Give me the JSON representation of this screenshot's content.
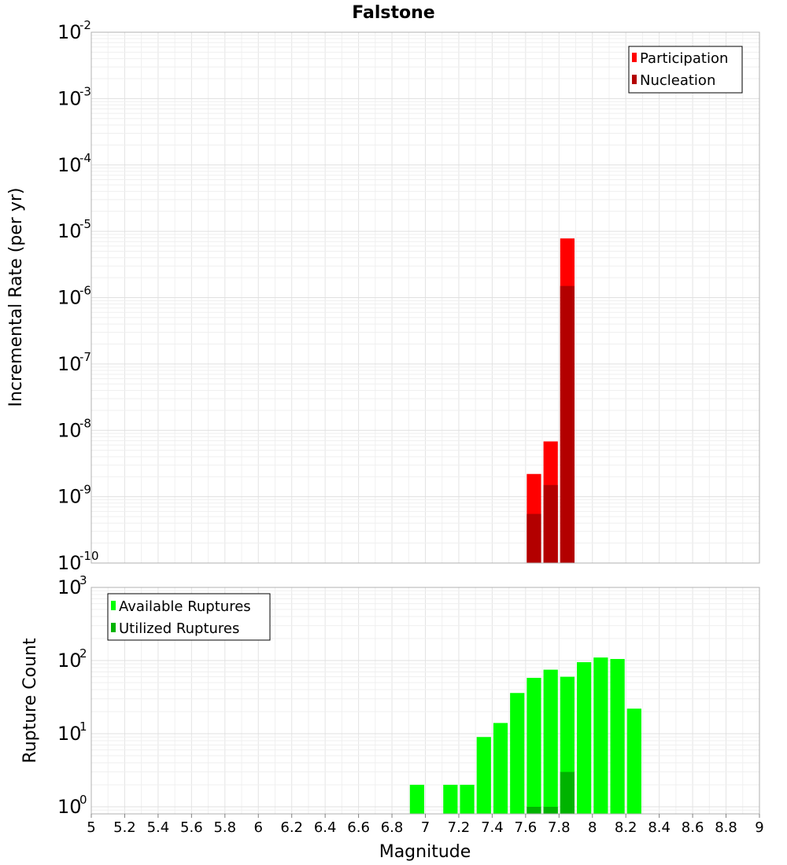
{
  "title": "Falstone",
  "chart_data": [
    {
      "type": "bar",
      "ylabel": "Incremental Rate (per yr)",
      "yscale": "log",
      "ylim": [
        1e-10,
        0.01
      ],
      "xlim": [
        5,
        9
      ],
      "bin_width": 0.1,
      "yticks": [
        {
          "base": "10",
          "exp": "-10"
        },
        {
          "base": "10",
          "exp": "-9"
        },
        {
          "base": "10",
          "exp": "-8"
        },
        {
          "base": "10",
          "exp": "-7"
        },
        {
          "base": "10",
          "exp": "-6"
        },
        {
          "base": "10",
          "exp": "-5"
        },
        {
          "base": "10",
          "exp": "-4"
        },
        {
          "base": "10",
          "exp": "-3"
        },
        {
          "base": "10",
          "exp": "-2"
        }
      ],
      "legend_position": "top-right",
      "grid": true,
      "series": [
        {
          "name": "Participation",
          "color": "#ff0000",
          "x": [
            7.65,
            7.75,
            7.85
          ],
          "values": [
            2.2e-09,
            6.8e-09,
            7.8e-06
          ]
        },
        {
          "name": "Nucleation",
          "color": "#b30000",
          "x": [
            7.65,
            7.75,
            7.85
          ],
          "values": [
            5.5e-10,
            1.5e-09,
            1.5e-06
          ]
        }
      ]
    },
    {
      "type": "bar",
      "ylabel": "Rupture Count",
      "xlabel": "Magnitude",
      "yscale": "log",
      "ylim": [
        0.8,
        1000
      ],
      "xlim": [
        5,
        9
      ],
      "bin_width": 0.1,
      "yticks": [
        {
          "base": "10",
          "exp": "0"
        },
        {
          "base": "10",
          "exp": "1"
        },
        {
          "base": "10",
          "exp": "2"
        },
        {
          "base": "10",
          "exp": "3"
        }
      ],
      "xticks": [
        "5",
        "5.2",
        "5.4",
        "5.6",
        "5.8",
        "6",
        "6.2",
        "6.4",
        "6.6",
        "6.8",
        "7",
        "7.2",
        "7.4",
        "7.6",
        "7.8",
        "8",
        "8.2",
        "8.4",
        "8.6",
        "8.8",
        "9"
      ],
      "legend_position": "top-left",
      "grid": true,
      "series": [
        {
          "name": "Available Ruptures",
          "color": "#00ff00",
          "x": [
            6.95,
            7.15,
            7.25,
            7.35,
            7.45,
            7.55,
            7.65,
            7.75,
            7.85,
            7.95,
            8.05,
            8.15,
            8.25
          ],
          "values": [
            2,
            2,
            2,
            9,
            14,
            36,
            58,
            75,
            60,
            95,
            110,
            105,
            22
          ]
        },
        {
          "name": "Utilized Ruptures",
          "color": "#00b300",
          "x": [
            7.65,
            7.75,
            7.85
          ],
          "values": [
            1,
            1,
            3
          ]
        }
      ]
    }
  ]
}
